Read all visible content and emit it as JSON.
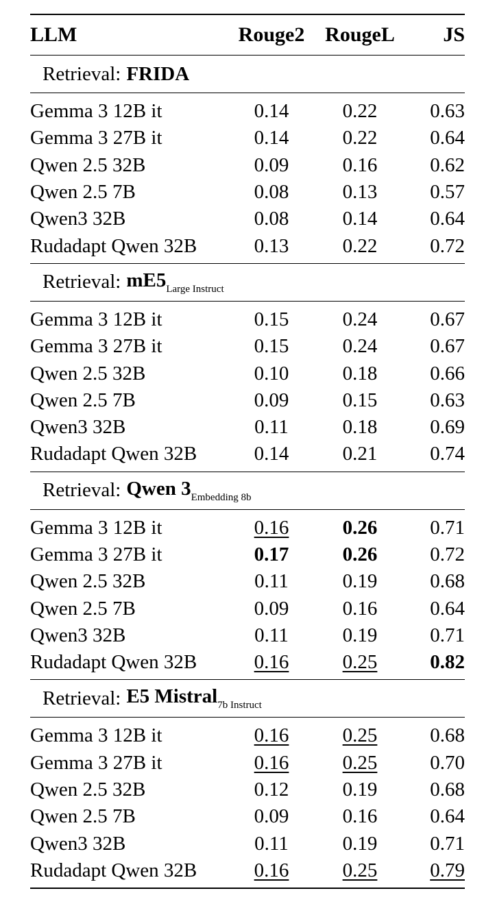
{
  "headers": {
    "llm": "LLM",
    "rouge2": "Rouge2",
    "rougel": "RougeL",
    "js": "JS"
  },
  "sections": [
    {
      "prefix": "Retrieval:",
      "model": "FRIDA",
      "subscript": "",
      "rows": [
        {
          "llm": "Gemma 3 12B it",
          "rouge2": "0.14",
          "rougel": "0.22",
          "js": "0.63"
        },
        {
          "llm": "Gemma 3 27B it",
          "rouge2": "0.14",
          "rougel": "0.22",
          "js": "0.64"
        },
        {
          "llm": "Qwen 2.5 32B",
          "rouge2": "0.09",
          "rougel": "0.16",
          "js": "0.62"
        },
        {
          "llm": "Qwen 2.5 7B",
          "rouge2": "0.08",
          "rougel": "0.13",
          "js": "0.57"
        },
        {
          "llm": "Qwen3 32B",
          "rouge2": "0.08",
          "rougel": "0.14",
          "js": "0.64"
        },
        {
          "llm": "Rudadapt Qwen 32B",
          "rouge2": "0.13",
          "rougel": "0.22",
          "js": "0.72"
        }
      ]
    },
    {
      "prefix": "Retrieval:",
      "model": "mE5",
      "subscript": "Large Instruct",
      "rows": [
        {
          "llm": "Gemma 3 12B it",
          "rouge2": "0.15",
          "rougel": "0.24",
          "js": "0.67"
        },
        {
          "llm": "Gemma 3 27B it",
          "rouge2": "0.15",
          "rougel": "0.24",
          "js": "0.67"
        },
        {
          "llm": "Qwen 2.5 32B",
          "rouge2": "0.10",
          "rougel": "0.18",
          "js": "0.66"
        },
        {
          "llm": "Qwen 2.5 7B",
          "rouge2": "0.09",
          "rougel": "0.15",
          "js": "0.63"
        },
        {
          "llm": "Qwen3 32B",
          "rouge2": "0.11",
          "rougel": "0.18",
          "js": "0.69"
        },
        {
          "llm": "Rudadapt Qwen 32B",
          "rouge2": "0.14",
          "rougel": "0.21",
          "js": "0.74"
        }
      ]
    },
    {
      "prefix": "Retrieval:",
      "model": "Qwen 3",
      "subscript": "Embedding 8b",
      "rows": [
        {
          "llm": "Gemma 3 12B it",
          "rouge2": "0.16",
          "rougel": "0.26",
          "js": "0.71",
          "style": {
            "rouge2": "u",
            "rougel": "b"
          }
        },
        {
          "llm": "Gemma 3 27B it",
          "rouge2": "0.17",
          "rougel": "0.26",
          "js": "0.72",
          "style": {
            "rouge2": "b",
            "rougel": "b"
          }
        },
        {
          "llm": "Qwen 2.5 32B",
          "rouge2": "0.11",
          "rougel": "0.19",
          "js": "0.68"
        },
        {
          "llm": "Qwen 2.5 7B",
          "rouge2": "0.09",
          "rougel": "0.16",
          "js": "0.64"
        },
        {
          "llm": "Qwen3 32B",
          "rouge2": "0.11",
          "rougel": "0.19",
          "js": "0.71"
        },
        {
          "llm": "Rudadapt Qwen 32B",
          "rouge2": "0.16",
          "rougel": "0.25",
          "js": "0.82",
          "style": {
            "rouge2": "u",
            "rougel": "u",
            "js": "b"
          }
        }
      ]
    },
    {
      "prefix": "Retrieval:",
      "model": "E5 Mistral",
      "subscript": "7b Instruct",
      "rows": [
        {
          "llm": "Gemma 3 12B it",
          "rouge2": "0.16",
          "rougel": "0.25",
          "js": "0.68",
          "style": {
            "rouge2": "u",
            "rougel": "u"
          }
        },
        {
          "llm": "Gemma 3 27B it",
          "rouge2": "0.16",
          "rougel": "0.25",
          "js": "0.70",
          "style": {
            "rouge2": "u",
            "rougel": "u"
          }
        },
        {
          "llm": "Qwen 2.5 32B",
          "rouge2": "0.12",
          "rougel": "0.19",
          "js": "0.68"
        },
        {
          "llm": "Qwen 2.5 7B",
          "rouge2": "0.09",
          "rougel": "0.16",
          "js": "0.64"
        },
        {
          "llm": "Qwen3 32B",
          "rouge2": "0.11",
          "rougel": "0.19",
          "js": "0.71"
        },
        {
          "llm": "Rudadapt Qwen 32B",
          "rouge2": "0.16",
          "rougel": "0.25",
          "js": "0.79",
          "style": {
            "rouge2": "u",
            "rougel": "u",
            "js": "u"
          }
        }
      ]
    }
  ]
}
